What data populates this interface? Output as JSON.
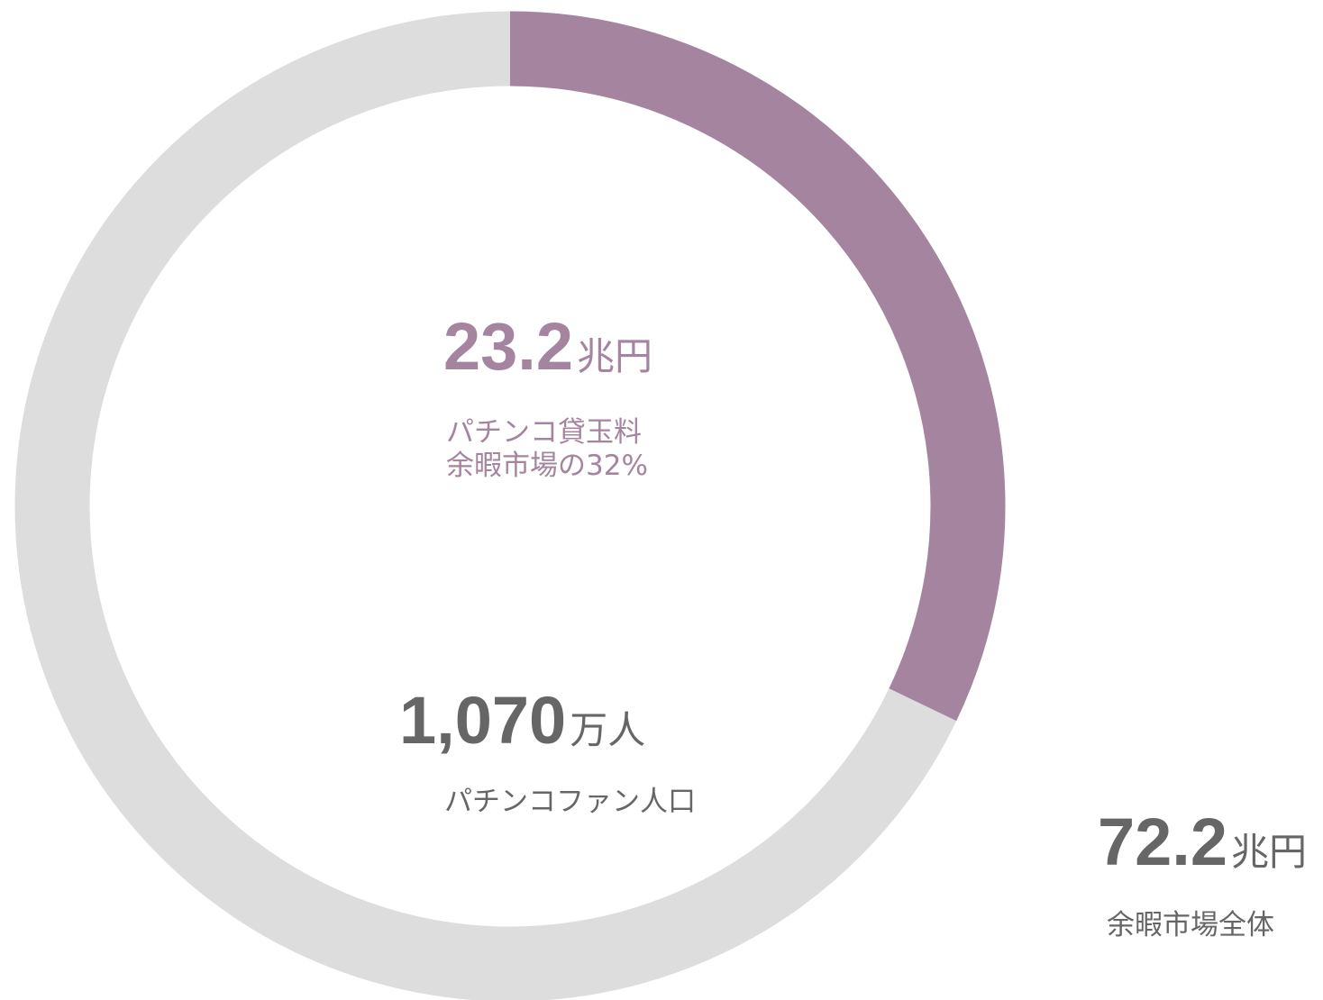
{
  "chart_data": {
    "type": "donut",
    "value": 23.2,
    "unit": "兆円",
    "label_lines": [
      "パチンコ貸玉料",
      "余暇市場の32%"
    ],
    "color": "#a5849f",
    "total": 72.2,
    "total_unit": "兆円",
    "total_label": "余暇市場全体",
    "track_color": "#dddddd",
    "fans": {
      "value": 1070,
      "value_label": "1,070",
      "unit": "万人",
      "label": "パチンコファン人口"
    },
    "text_color": "#666666"
  }
}
